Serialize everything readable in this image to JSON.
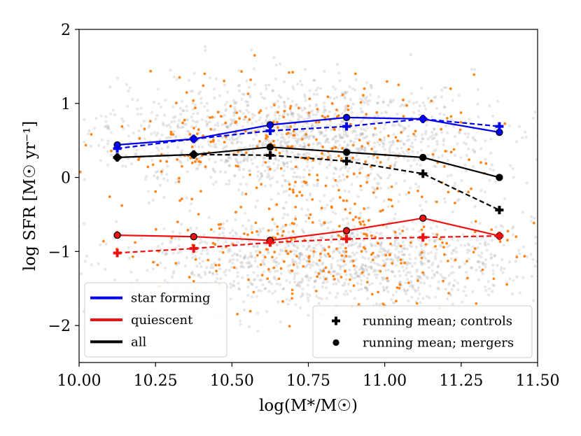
{
  "chart_data": {
    "type": "scatter",
    "title": "",
    "xlabel": "log(M*/M☉)",
    "ylabel": "log SFR [M☉ yr⁻¹]",
    "xlim": [
      10.0,
      11.5
    ],
    "ylim": [
      -2.5,
      2.0
    ],
    "x_ticks": [
      10.0,
      10.25,
      10.5,
      10.75,
      11.0,
      11.25,
      11.5
    ],
    "x_tick_labels": [
      "10.00",
      "10.25",
      "10.50",
      "10.75",
      "11.00",
      "11.25",
      "11.50"
    ],
    "y_ticks": [
      -2,
      -1,
      0,
      1,
      2
    ],
    "y_tick_labels": [
      "−2",
      "−1",
      "0",
      "1",
      "2"
    ],
    "bin_centers": [
      10.125,
      10.375,
      10.625,
      10.875,
      11.125,
      11.375
    ],
    "series": [
      {
        "name": "star forming",
        "sample": "mergers",
        "color": "#0000ee",
        "dash": false,
        "marker": "circle",
        "values": [
          0.44,
          0.52,
          0.71,
          0.81,
          0.79,
          0.61
        ]
      },
      {
        "name": "star forming",
        "sample": "controls",
        "color": "#0000ee",
        "dash": true,
        "marker": "plus",
        "values": [
          0.39,
          0.52,
          0.63,
          0.69,
          0.79,
          0.69
        ]
      },
      {
        "name": "all",
        "sample": "mergers",
        "color": "#000000",
        "dash": false,
        "marker": "circle",
        "values": [
          0.27,
          0.31,
          0.41,
          0.34,
          0.27,
          0.0
        ]
      },
      {
        "name": "all",
        "sample": "controls",
        "color": "#000000",
        "dash": true,
        "marker": "plus",
        "values": [
          0.27,
          0.31,
          0.3,
          0.22,
          0.05,
          -0.44
        ]
      },
      {
        "name": "quiescent",
        "sample": "mergers",
        "color": "#ee1111",
        "dash": false,
        "marker": "circle",
        "values": [
          -0.78,
          -0.8,
          -0.85,
          -0.72,
          -0.55,
          -0.79
        ]
      },
      {
        "name": "quiescent",
        "sample": "controls",
        "color": "#ee1111",
        "dash": true,
        "marker": "plus",
        "values": [
          -1.02,
          -0.96,
          -0.88,
          -0.83,
          -0.81,
          -0.79
        ]
      }
    ],
    "background_clouds": [
      {
        "name": "controls (gray)",
        "color": "#aaaaaa",
        "count": 2600,
        "seed": 7,
        "components": [
          {
            "weight": 0.52,
            "x_mean": 10.72,
            "x_sd": 0.33,
            "y_mean": 0.55,
            "y_sd": 0.38
          },
          {
            "weight": 0.48,
            "x_mean": 10.85,
            "x_sd": 0.33,
            "y_mean": -1.15,
            "y_sd": 0.33
          }
        ]
      },
      {
        "name": "mergers (orange)",
        "color": "#ff7f0e",
        "count": 520,
        "seed": 31,
        "components": [
          {
            "weight": 0.5,
            "x_mean": 10.72,
            "x_sd": 0.32,
            "y_mean": 0.45,
            "y_sd": 0.45
          },
          {
            "weight": 0.5,
            "x_mean": 10.85,
            "x_sd": 0.32,
            "y_mean": -1.0,
            "y_sd": 0.38
          }
        ]
      }
    ],
    "legends": [
      {
        "position": "lower-left",
        "entries": [
          {
            "label": "star forming",
            "color": "#0000ee",
            "symbol": "line"
          },
          {
            "label": "quiescent",
            "color": "#ee1111",
            "symbol": "line"
          },
          {
            "label": "all",
            "color": "#000000",
            "symbol": "line"
          }
        ]
      },
      {
        "position": "lower-right",
        "entries": [
          {
            "label": "running mean; controls",
            "color": "#000000",
            "symbol": "plus"
          },
          {
            "label": "running mean; mergers",
            "color": "#000000",
            "symbol": "circle"
          }
        ]
      }
    ]
  }
}
